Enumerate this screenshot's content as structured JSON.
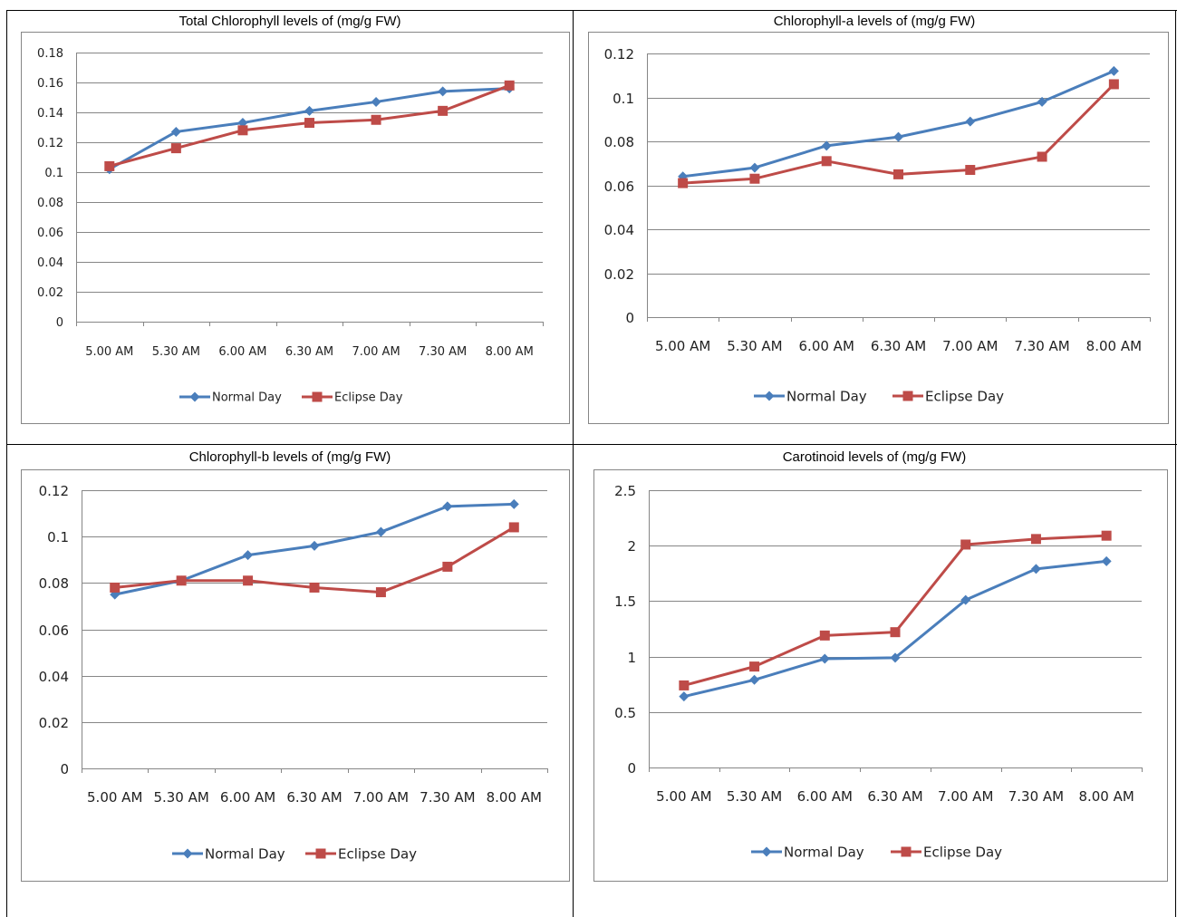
{
  "colors": {
    "normal": "#4a7ebb",
    "eclipse": "#be4b48",
    "grid": "#868686",
    "frame": "#868686"
  },
  "chart_data": [
    {
      "type": "line",
      "title": "Total Chlorophyll levels of (mg/g FW)",
      "categories": [
        "5.00 AM",
        "5.30 AM",
        "6.00 AM",
        "6.30 AM",
        "7.00 AM",
        "7.30 AM",
        "8.00 AM"
      ],
      "ylim": [
        0,
        0.18
      ],
      "yticks": [
        "0",
        "0.02",
        "0.04",
        "0.06",
        "0.08",
        "0.1",
        "0.12",
        "0.14",
        "0.16",
        "0.18"
      ],
      "grid": true,
      "legend": "bottom",
      "series": [
        {
          "name": "Normal Day",
          "values": [
            0.102,
            0.127,
            0.133,
            0.141,
            0.147,
            0.154,
            0.156
          ]
        },
        {
          "name": "Eclipse Day",
          "values": [
            0.104,
            0.116,
            0.128,
            0.133,
            0.135,
            0.141,
            0.158
          ]
        }
      ]
    },
    {
      "type": "line",
      "title": "Chlorophyll-a levels of (mg/g FW)",
      "categories": [
        "5.00 AM",
        "5.30 AM",
        "6.00 AM",
        "6.30 AM",
        "7.00 AM",
        "7.30 AM",
        "8.00 AM"
      ],
      "ylim": [
        0,
        0.12
      ],
      "yticks": [
        "0",
        "0.02",
        "0.04",
        "0.06",
        "0.08",
        "0.1",
        "0.12"
      ],
      "grid": true,
      "legend": "bottom",
      "series": [
        {
          "name": "Normal Day",
          "values": [
            0.064,
            0.068,
            0.078,
            0.082,
            0.089,
            0.098,
            0.112
          ]
        },
        {
          "name": "Eclipse Day",
          "values": [
            0.061,
            0.063,
            0.071,
            0.065,
            0.067,
            0.073,
            0.106
          ]
        }
      ]
    },
    {
      "type": "line",
      "title": "Chlorophyll-b levels of (mg/g FW)",
      "categories": [
        "5.00 AM",
        "5.30 AM",
        "6.00 AM",
        "6.30 AM",
        "7.00 AM",
        "7.30 AM",
        "8.00 AM"
      ],
      "ylim": [
        0,
        0.12
      ],
      "yticks": [
        "0",
        "0.02",
        "0.04",
        "0.06",
        "0.08",
        "0.1",
        "0.12"
      ],
      "grid": true,
      "legend": "bottom",
      "series": [
        {
          "name": "Normal Day",
          "values": [
            0.075,
            0.081,
            0.092,
            0.096,
            0.102,
            0.113,
            0.114
          ]
        },
        {
          "name": "Eclipse Day",
          "values": [
            0.078,
            0.081,
            0.081,
            0.078,
            0.076,
            0.087,
            0.104
          ]
        }
      ]
    },
    {
      "type": "line",
      "title": "Carotinoid levels of (mg/g FW)",
      "categories": [
        "5.00 AM",
        "5.30 AM",
        "6.00 AM",
        "6.30 AM",
        "7.00 AM",
        "7.30 AM",
        "8.00 AM"
      ],
      "ylim": [
        0,
        2.5
      ],
      "yticks": [
        "0",
        "0.5",
        "1",
        "1.5",
        "2",
        "2.5"
      ],
      "grid": true,
      "legend": "bottom",
      "series": [
        {
          "name": "Normal Day",
          "values": [
            0.64,
            0.79,
            0.98,
            0.99,
            1.51,
            1.79,
            1.86
          ]
        },
        {
          "name": "Eclipse Day",
          "values": [
            0.74,
            0.91,
            1.19,
            1.22,
            2.01,
            2.06,
            2.09
          ]
        }
      ]
    }
  ]
}
